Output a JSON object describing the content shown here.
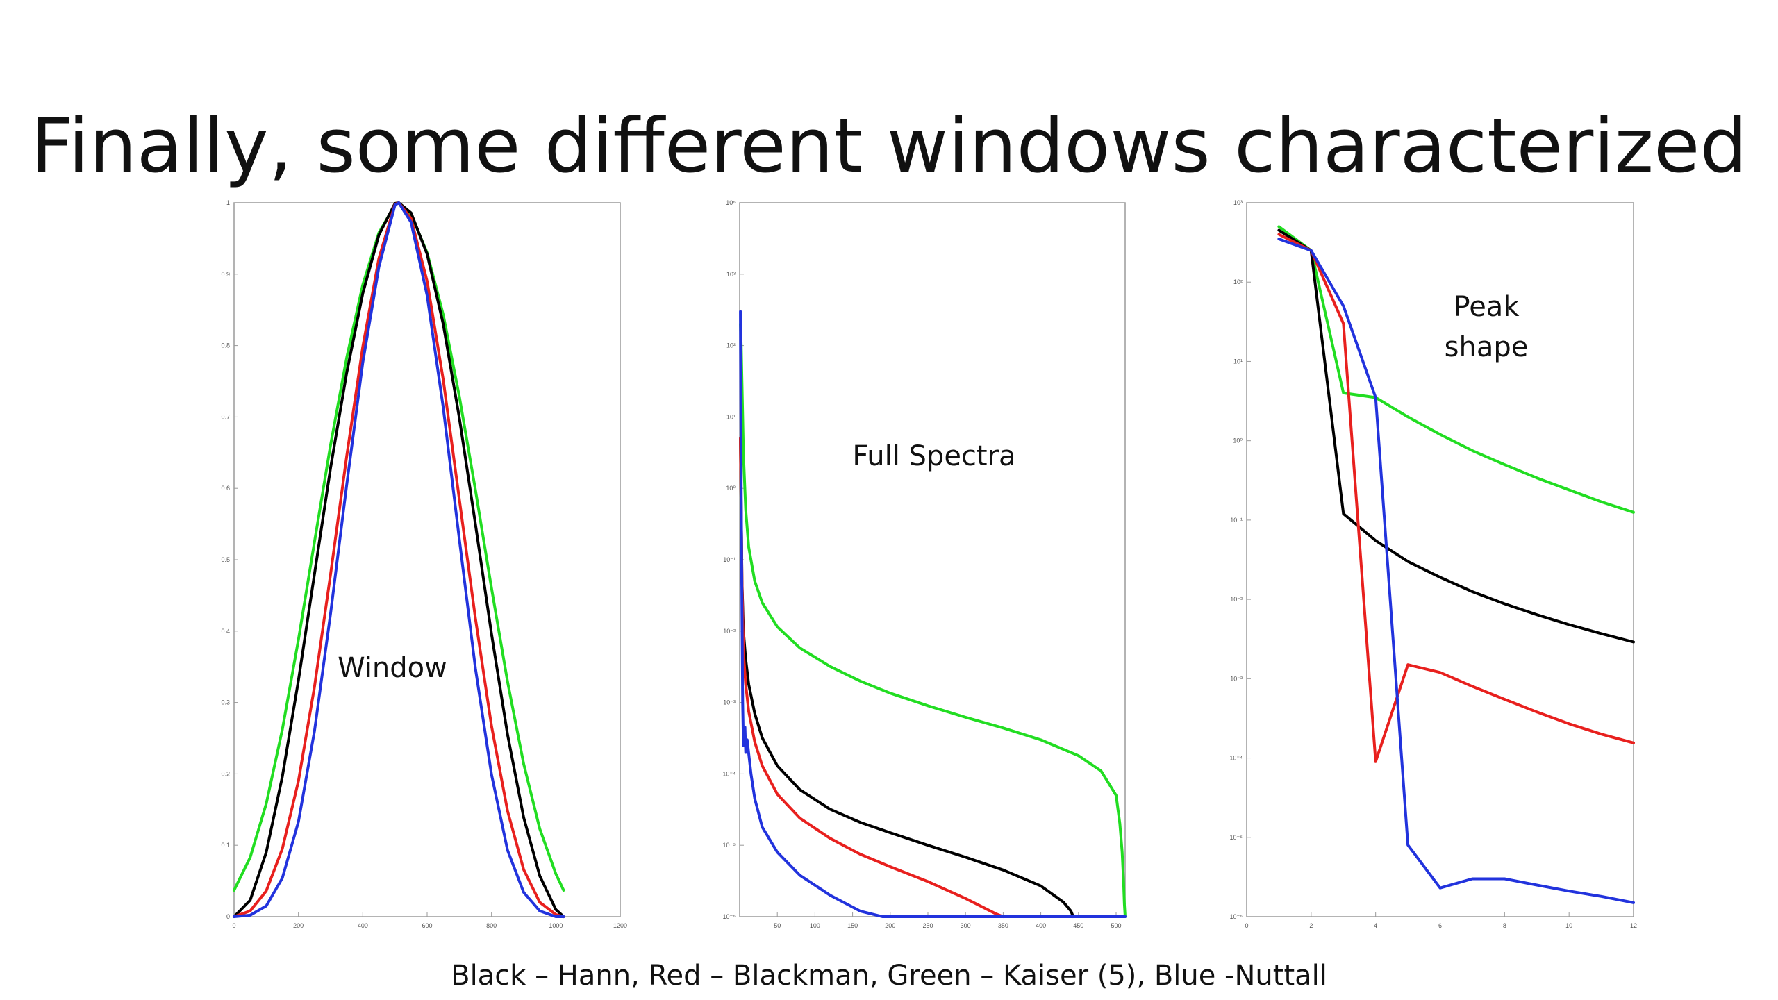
{
  "slide": {
    "title": "Finally, some different windows characterized",
    "caption": "Black – Hann, Red – Blackman, Green – Kaiser (5), Blue -Nuttall"
  },
  "colors": {
    "hann": "#000000",
    "blackman": "#e8201e",
    "kaiser": "#22dd22",
    "nuttall": "#2233dd"
  },
  "chart_data": [
    {
      "type": "line",
      "annotation": "Window",
      "xlim": [
        0,
        1200
      ],
      "ylim": [
        0,
        1
      ],
      "x_ticks": [
        "0",
        "200",
        "400",
        "600",
        "800",
        "1000",
        "1200"
      ],
      "y_ticks": [
        "0",
        "0.1",
        "0.2",
        "0.3",
        "0.4",
        "0.5",
        "0.6",
        "0.7",
        "0.8",
        "0.9",
        "1"
      ],
      "x": [
        0,
        50,
        100,
        150,
        200,
        250,
        300,
        350,
        400,
        450,
        500,
        512,
        550,
        600,
        650,
        700,
        750,
        800,
        850,
        900,
        950,
        1000,
        1024
      ],
      "series": [
        {
          "key": "hann",
          "values": [
            0.0,
            0.023,
            0.09,
            0.196,
            0.331,
            0.48,
            0.629,
            0.762,
            0.873,
            0.955,
            0.999,
            1.0,
            0.986,
            0.928,
            0.83,
            0.699,
            0.55,
            0.396,
            0.255,
            0.139,
            0.057,
            0.01,
            0.0
          ]
        },
        {
          "key": "blackman",
          "values": [
            0.0,
            0.008,
            0.036,
            0.095,
            0.19,
            0.322,
            0.48,
            0.645,
            0.798,
            0.922,
            0.998,
            1.0,
            0.978,
            0.89,
            0.752,
            0.585,
            0.418,
            0.267,
            0.148,
            0.066,
            0.02,
            0.003,
            0.0
          ]
        },
        {
          "key": "kaiser",
          "values": [
            0.037,
            0.083,
            0.158,
            0.262,
            0.388,
            0.525,
            0.661,
            0.783,
            0.885,
            0.958,
            0.997,
            1.0,
            0.984,
            0.93,
            0.843,
            0.729,
            0.598,
            0.46,
            0.329,
            0.214,
            0.123,
            0.06,
            0.037
          ]
        },
        {
          "key": "nuttall",
          "values": [
            0.0,
            0.002,
            0.015,
            0.054,
            0.133,
            0.26,
            0.425,
            0.605,
            0.776,
            0.91,
            0.997,
            1.0,
            0.973,
            0.87,
            0.713,
            0.529,
            0.348,
            0.199,
            0.093,
            0.034,
            0.008,
            0.0,
            0.0
          ]
        }
      ]
    },
    {
      "type": "line",
      "annotation": "Full Spectra",
      "y_scale": "log",
      "xlim": [
        0,
        512
      ],
      "ylim": [
        1e-06,
        10000.0
      ],
      "x_ticks": [
        "50",
        "100",
        "150",
        "200",
        "250",
        "300",
        "350",
        "400",
        "450",
        "500"
      ],
      "y_ticks": [
        "10⁶",
        "10³",
        "10²",
        "10¹",
        "10⁰",
        "10⁻¹",
        "10⁻²",
        "10⁻³",
        "10⁻⁴",
        "10⁻⁵",
        "10⁻⁶"
      ],
      "series": [
        {
          "key": "kaiser",
          "x": [
            1,
            2,
            3,
            5,
            8,
            12,
            20,
            30,
            50,
            80,
            120,
            160,
            200,
            250,
            300,
            350,
            400,
            450,
            480,
            500,
            505,
            508,
            510,
            511,
            512
          ],
          "values": [
            200,
            100,
            30,
            3,
            0.5,
            0.15,
            0.05,
            0.025,
            0.0115,
            0.0058,
            0.0032,
            0.002,
            0.00135,
            0.0009,
            0.00062,
            0.00044,
            0.0003,
            0.00018,
            0.00011,
            5e-05,
            2e-05,
            8e-06,
            3e-06,
            1.5e-06,
            1e-06
          ]
        },
        {
          "key": "hann",
          "x": [
            1,
            2,
            3,
            5,
            8,
            12,
            20,
            30,
            50,
            80,
            120,
            160,
            200,
            250,
            300,
            350,
            400,
            430,
            440,
            443
          ],
          "values": [
            5,
            0.5,
            0.05,
            0.01,
            0.004,
            0.0018,
            0.0007,
            0.00032,
            0.00013,
            6e-05,
            3.2e-05,
            2.1e-05,
            1.5e-05,
            1e-05,
            6.8e-06,
            4.5e-06,
            2.7e-06,
            1.6e-06,
            1.2e-06,
            1e-06
          ]
        },
        {
          "key": "blackman",
          "x": [
            1,
            2,
            3,
            5,
            8,
            12,
            20,
            30,
            50,
            80,
            120,
            160,
            200,
            250,
            300,
            340,
            350
          ],
          "values": [
            5,
            0.5,
            0.05,
            0.005,
            0.0018,
            0.00075,
            0.00028,
            0.00013,
            5.2e-05,
            2.4e-05,
            1.25e-05,
            7.5e-06,
            5e-06,
            3.1e-06,
            1.8e-06,
            1.1e-06,
            1e-06
          ]
        },
        {
          "key": "nuttall",
          "x": [
            1,
            2,
            3,
            4,
            5,
            7,
            8,
            10,
            15,
            20,
            30,
            50,
            80,
            120,
            160,
            190,
            512
          ],
          "values": [
            300,
            1,
            0.02,
            0.001,
            0.00025,
            0.00045,
            0.0002,
            0.0003,
            0.0001,
            4.5e-05,
            1.8e-05,
            8e-06,
            3.8e-06,
            2e-06,
            1.2e-06,
            1e-06,
            1e-06
          ]
        }
      ]
    },
    {
      "type": "line",
      "annotation": "Peak shape",
      "y_scale": "log",
      "xlim": [
        0,
        12
      ],
      "ylim": [
        1e-06,
        1000.0
      ],
      "x_ticks": [
        "0",
        "2",
        "4",
        "6",
        "8",
        "10",
        "12"
      ],
      "y_ticks": [
        "10³",
        "10²",
        "10¹",
        "10⁰",
        "10⁻¹",
        "10⁻²",
        "10⁻³",
        "10⁻⁴",
        "10⁻⁵",
        "10⁻⁶"
      ],
      "series": [
        {
          "key": "kaiser",
          "x": [
            1,
            2,
            3,
            4,
            5,
            6,
            7,
            8,
            9,
            10,
            11,
            12
          ],
          "values": [
            500,
            250,
            4,
            3.5,
            2,
            1.2,
            0.75,
            0.5,
            0.34,
            0.24,
            0.17,
            0.125
          ]
        },
        {
          "key": "hann",
          "x": [
            1,
            2,
            3,
            4,
            5,
            6,
            7,
            8,
            9,
            10,
            11,
            12
          ],
          "values": [
            450,
            250,
            0.12,
            0.055,
            0.03,
            0.019,
            0.0125,
            0.0088,
            0.0064,
            0.0048,
            0.0037,
            0.0029
          ]
        },
        {
          "key": "blackman",
          "x": [
            1,
            2,
            3,
            4,
            5,
            6,
            7,
            8,
            9,
            10,
            11,
            12
          ],
          "values": [
            400,
            250,
            30,
            9e-05,
            0.0015,
            0.0012,
            0.0008,
            0.00055,
            0.00038,
            0.00027,
            0.0002,
            0.000155
          ]
        },
        {
          "key": "nuttall",
          "x": [
            1,
            2,
            3,
            4,
            5,
            6,
            7,
            8,
            9,
            10,
            11,
            12
          ],
          "values": [
            350,
            250,
            50,
            3.5,
            8e-06,
            2.3e-06,
            3e-06,
            3e-06,
            2.5e-06,
            2.1e-06,
            1.8e-06,
            1.5e-06
          ]
        }
      ]
    }
  ]
}
